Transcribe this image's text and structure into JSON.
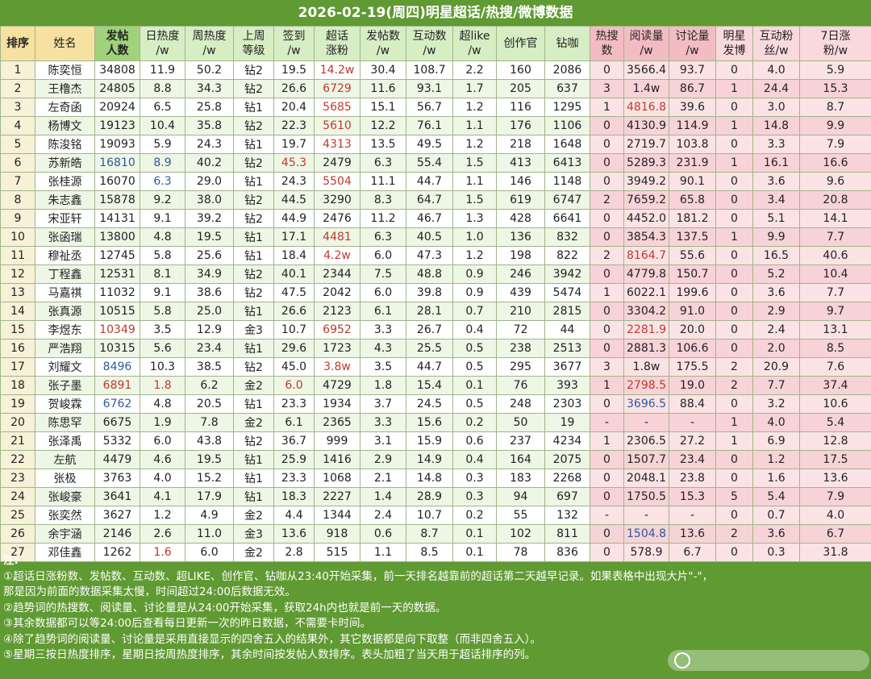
{
  "title": "2026-02-19(周四)明星超话/热搜/微博数据",
  "headers": [
    "排序",
    "姓名",
    "发帖\n人数",
    "日热度\n/w",
    "周热度\n/w",
    "上周\n等级",
    "签到\n/w",
    "超话\n涨粉",
    "发帖数\n/w",
    "互动数\n/w",
    "超like\n/w",
    "创作官",
    "钻咖",
    "热搜\n数",
    "阅读量\n/w",
    "讨论量\n/w",
    "明星\n发博",
    "互动粉\n丝/w",
    "7日涨\n粉/w"
  ],
  "rows": [
    [
      "1",
      "陈奕恒",
      "34808",
      "11.9",
      "50.2",
      "钻2",
      "19.5",
      "14.2w",
      "30.4",
      "108.7",
      "2.2",
      "160",
      "2086",
      "0",
      "3566.4",
      "93.7",
      "0",
      "4.0",
      "5.9"
    ],
    [
      "2",
      "王橹杰",
      "24805",
      "8.8",
      "34.3",
      "钻2",
      "26.6",
      "6729",
      "11.6",
      "93.1",
      "1.7",
      "205",
      "637",
      "3",
      "1.4w",
      "86.7",
      "1",
      "24.4",
      "15.3"
    ],
    [
      "3",
      "左奇函",
      "20924",
      "6.5",
      "25.8",
      "钻1",
      "20.4",
      "5685",
      "15.1",
      "56.7",
      "1.2",
      "116",
      "1295",
      "1",
      "4816.8",
      "39.6",
      "0",
      "3.0",
      "8.7"
    ],
    [
      "4",
      "杨博文",
      "19123",
      "10.4",
      "35.8",
      "钻2",
      "22.3",
      "5610",
      "12.2",
      "76.1",
      "1.1",
      "176",
      "1106",
      "0",
      "4130.9",
      "114.9",
      "1",
      "14.8",
      "9.9"
    ],
    [
      "5",
      "陈浚铭",
      "19093",
      "5.9",
      "24.3",
      "钻1",
      "19.7",
      "4313",
      "13.5",
      "49.5",
      "1.2",
      "218",
      "1648",
      "0",
      "2719.7",
      "103.8",
      "0",
      "3.3",
      "7.9"
    ],
    [
      "6",
      "苏新皓",
      "16810",
      "8.9",
      "40.2",
      "钻2",
      "45.3",
      "2479",
      "6.3",
      "55.4",
      "1.5",
      "413",
      "6413",
      "0",
      "5289.3",
      "231.9",
      "1",
      "16.1",
      "16.6"
    ],
    [
      "7",
      "张桂源",
      "16070",
      "6.3",
      "29.0",
      "钻1",
      "24.3",
      "5504",
      "11.1",
      "44.7",
      "1.1",
      "146",
      "1148",
      "0",
      "3949.2",
      "90.1",
      "0",
      "3.6",
      "9.6"
    ],
    [
      "8",
      "朱志鑫",
      "15878",
      "9.2",
      "38.0",
      "钻2",
      "44.5",
      "3290",
      "8.3",
      "64.7",
      "1.5",
      "619",
      "6747",
      "2",
      "7659.2",
      "65.8",
      "0",
      "3.4",
      "20.8"
    ],
    [
      "9",
      "宋亚轩",
      "14131",
      "9.1",
      "39.2",
      "钻2",
      "44.9",
      "2476",
      "11.2",
      "46.7",
      "1.3",
      "428",
      "6641",
      "0",
      "4452.0",
      "181.2",
      "0",
      "5.1",
      "14.1"
    ],
    [
      "10",
      "张函瑞",
      "13800",
      "4.8",
      "19.5",
      "钻1",
      "17.1",
      "4481",
      "6.3",
      "40.5",
      "1.0",
      "136",
      "832",
      "0",
      "3854.3",
      "137.5",
      "1",
      "9.9",
      "7.7"
    ],
    [
      "11",
      "穆祉丞",
      "12745",
      "5.8",
      "25.6",
      "钻1",
      "18.4",
      "4.2w",
      "6.0",
      "47.3",
      "1.2",
      "198",
      "822",
      "2",
      "8164.7",
      "55.6",
      "0",
      "16.5",
      "40.6"
    ],
    [
      "12",
      "丁程鑫",
      "12531",
      "8.1",
      "34.9",
      "钻2",
      "40.1",
      "2344",
      "7.5",
      "48.8",
      "0.9",
      "246",
      "3942",
      "0",
      "4779.8",
      "150.7",
      "0",
      "5.2",
      "10.4"
    ],
    [
      "13",
      "马嘉祺",
      "11032",
      "9.1",
      "38.6",
      "钻2",
      "47.5",
      "2042",
      "6.0",
      "39.8",
      "0.9",
      "439",
      "5474",
      "1",
      "6022.1",
      "199.6",
      "0",
      "3.6",
      "7.7"
    ],
    [
      "14",
      "张真源",
      "10515",
      "5.8",
      "25.0",
      "钻1",
      "26.6",
      "2123",
      "6.1",
      "28.1",
      "0.7",
      "210",
      "2815",
      "0",
      "3304.2",
      "91.0",
      "0",
      "2.9",
      "9.7"
    ],
    [
      "15",
      "李煜东",
      "10349",
      "3.5",
      "12.9",
      "金3",
      "10.7",
      "6952",
      "3.3",
      "26.7",
      "0.4",
      "72",
      "44",
      "0",
      "2281.9",
      "20.0",
      "0",
      "2.4",
      "13.1"
    ],
    [
      "16",
      "严浩翔",
      "10315",
      "5.6",
      "23.4",
      "钻1",
      "29.6",
      "1723",
      "4.3",
      "25.5",
      "0.5",
      "238",
      "2513",
      "0",
      "2881.3",
      "106.6",
      "0",
      "2.0",
      "8.5"
    ],
    [
      "17",
      "刘耀文",
      "8496",
      "10.3",
      "38.5",
      "钻2",
      "45.0",
      "3.8w",
      "3.5",
      "44.7",
      "0.5",
      "295",
      "3677",
      "3",
      "1.8w",
      "175.5",
      "2",
      "20.9",
      "7.6"
    ],
    [
      "18",
      "张子墨",
      "6891",
      "1.8",
      "6.2",
      "金2",
      "6.0",
      "4729",
      "1.8",
      "15.4",
      "0.1",
      "76",
      "393",
      "1",
      "2798.5",
      "19.0",
      "2",
      "7.7",
      "37.4"
    ],
    [
      "19",
      "贺峻霖",
      "6762",
      "4.8",
      "20.5",
      "钻1",
      "23.3",
      "1934",
      "3.7",
      "24.5",
      "0.5",
      "248",
      "2303",
      "0",
      "3696.5",
      "88.4",
      "0",
      "3.2",
      "10.6"
    ],
    [
      "20",
      "陈思罕",
      "6675",
      "1.9",
      "7.8",
      "金2",
      "6.1",
      "2365",
      "3.3",
      "15.6",
      "0.2",
      "50",
      "19",
      "-",
      "-",
      "-",
      "1",
      "4.0",
      "5.4"
    ],
    [
      "21",
      "张泽禹",
      "5332",
      "6.0",
      "43.8",
      "钻2",
      "36.7",
      "999",
      "3.1",
      "15.9",
      "0.6",
      "237",
      "4234",
      "1",
      "2306.5",
      "27.2",
      "1",
      "6.9",
      "12.8"
    ],
    [
      "22",
      "左航",
      "4479",
      "4.6",
      "19.5",
      "钻1",
      "25.9",
      "1416",
      "2.9",
      "14.9",
      "0.4",
      "164",
      "2075",
      "0",
      "1507.7",
      "23.4",
      "0",
      "1.2",
      "17.5"
    ],
    [
      "23",
      "张极",
      "3763",
      "4.0",
      "15.2",
      "钻1",
      "23.3",
      "1068",
      "2.1",
      "14.8",
      "0.3",
      "183",
      "2268",
      "0",
      "2048.1",
      "23.8",
      "0",
      "1.6",
      "13.6"
    ],
    [
      "24",
      "张峻豪",
      "3641",
      "4.1",
      "17.9",
      "钻1",
      "18.3",
      "2227",
      "1.4",
      "28.9",
      "0.3",
      "94",
      "697",
      "0",
      "1750.5",
      "15.3",
      "5",
      "5.4",
      "7.9"
    ],
    [
      "25",
      "张奕然",
      "3627",
      "1.2",
      "4.9",
      "金2",
      "4.4",
      "1344",
      "2.4",
      "10.7",
      "0.2",
      "55",
      "132",
      "-",
      "-",
      "-",
      "0",
      "0.7",
      "4.0"
    ],
    [
      "26",
      "余宇涵",
      "2146",
      "2.6",
      "11.0",
      "金3",
      "13.6",
      "918",
      "0.6",
      "8.7",
      "0.1",
      "102",
      "811",
      "0",
      "1504.8",
      "13.6",
      "2",
      "3.6",
      "6.7"
    ],
    [
      "27",
      "邓佳鑫",
      "1262",
      "1.6",
      "6.0",
      "金2",
      "2.8",
      "515",
      "1.1",
      "8.5",
      "0.1",
      "78",
      "836",
      "0",
      "578.9",
      "6.7",
      "0",
      "0.3",
      "31.8"
    ]
  ],
  "red_cells": [
    "0-7",
    "1-7",
    "2-7",
    "3-7",
    "4-7",
    "5-6",
    "6-7",
    "9-7",
    "10-7",
    "14-2",
    "14-7",
    "16-7",
    "17-2",
    "17-3",
    "17-6",
    "26-3",
    "2-14",
    "10-14",
    "14-14",
    "17-14"
  ],
  "blue_cells": [
    "5-2",
    "5-3",
    "6-3",
    "16-2",
    "18-2",
    "18-14",
    "25-14"
  ],
  "notes": {
    "label": "注:",
    "lines": [
      "①超话日涨粉数、发帖数、互动数、超LIKE、创作官、钻咖从23:40开始采集，前一天排名越靠前的超话第二天越早记录。如果表格中出现大片\"-\"，",
      "那是因为前面的数据采集太慢，时间超过24:00后数据无效。",
      "②趋势词的热搜数、阅读量、讨论量是从24:00开始采集，获取24h内也就是前一天的数据。",
      "③其余数据都可以等24:00后查看每日更新一次的昨日数据，不需要卡时间。",
      "④除了趋势词的阅读量、讨论量是采用直接显示的四舍五入的结果外，其它数据都是向下取整（而非四舍五入）。",
      "⑤星期三按日热度排序，星期日按周热度排序，其余时间按发帖人数排序。表头加粗了当天用于超话排序的列。"
    ]
  }
}
